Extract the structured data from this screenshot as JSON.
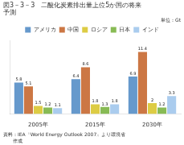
{
  "chart_data": {
    "type": "bar",
    "title": "図3－3－3　二酸化炭素排出量上位5か国の将来",
    "subtitle": "予測",
    "annotations": [
      "単位：Gt",
      "資料：IEA『World Energy Outlook 2007』より環境省\n　　作成"
    ],
    "categories": [
      "2005年",
      "2015年",
      "2030年"
    ],
    "series": [
      {
        "name": "アメリカ",
        "color": "#6699cc",
        "values": [
          5.8,
          6.4,
          6.9
        ]
      },
      {
        "name": "中国",
        "color": "#cc7744",
        "values": [
          5.1,
          8.6,
          11.4
        ]
      },
      {
        "name": "ロシア",
        "color": "#ddcc44",
        "values": [
          1.5,
          1.8,
          2.0
        ]
      },
      {
        "name": "日本",
        "color": "#88bb55",
        "values": [
          1.2,
          1.3,
          1.2
        ]
      },
      {
        "name": "インド",
        "color": "#aaccee",
        "values": [
          1.1,
          1.8,
          3.3
        ]
      }
    ],
    "ylim": [
      0,
      13.5
    ],
    "grid": false,
    "legend": "top",
    "data_labels": true,
    "tick_labels": "x"
  }
}
